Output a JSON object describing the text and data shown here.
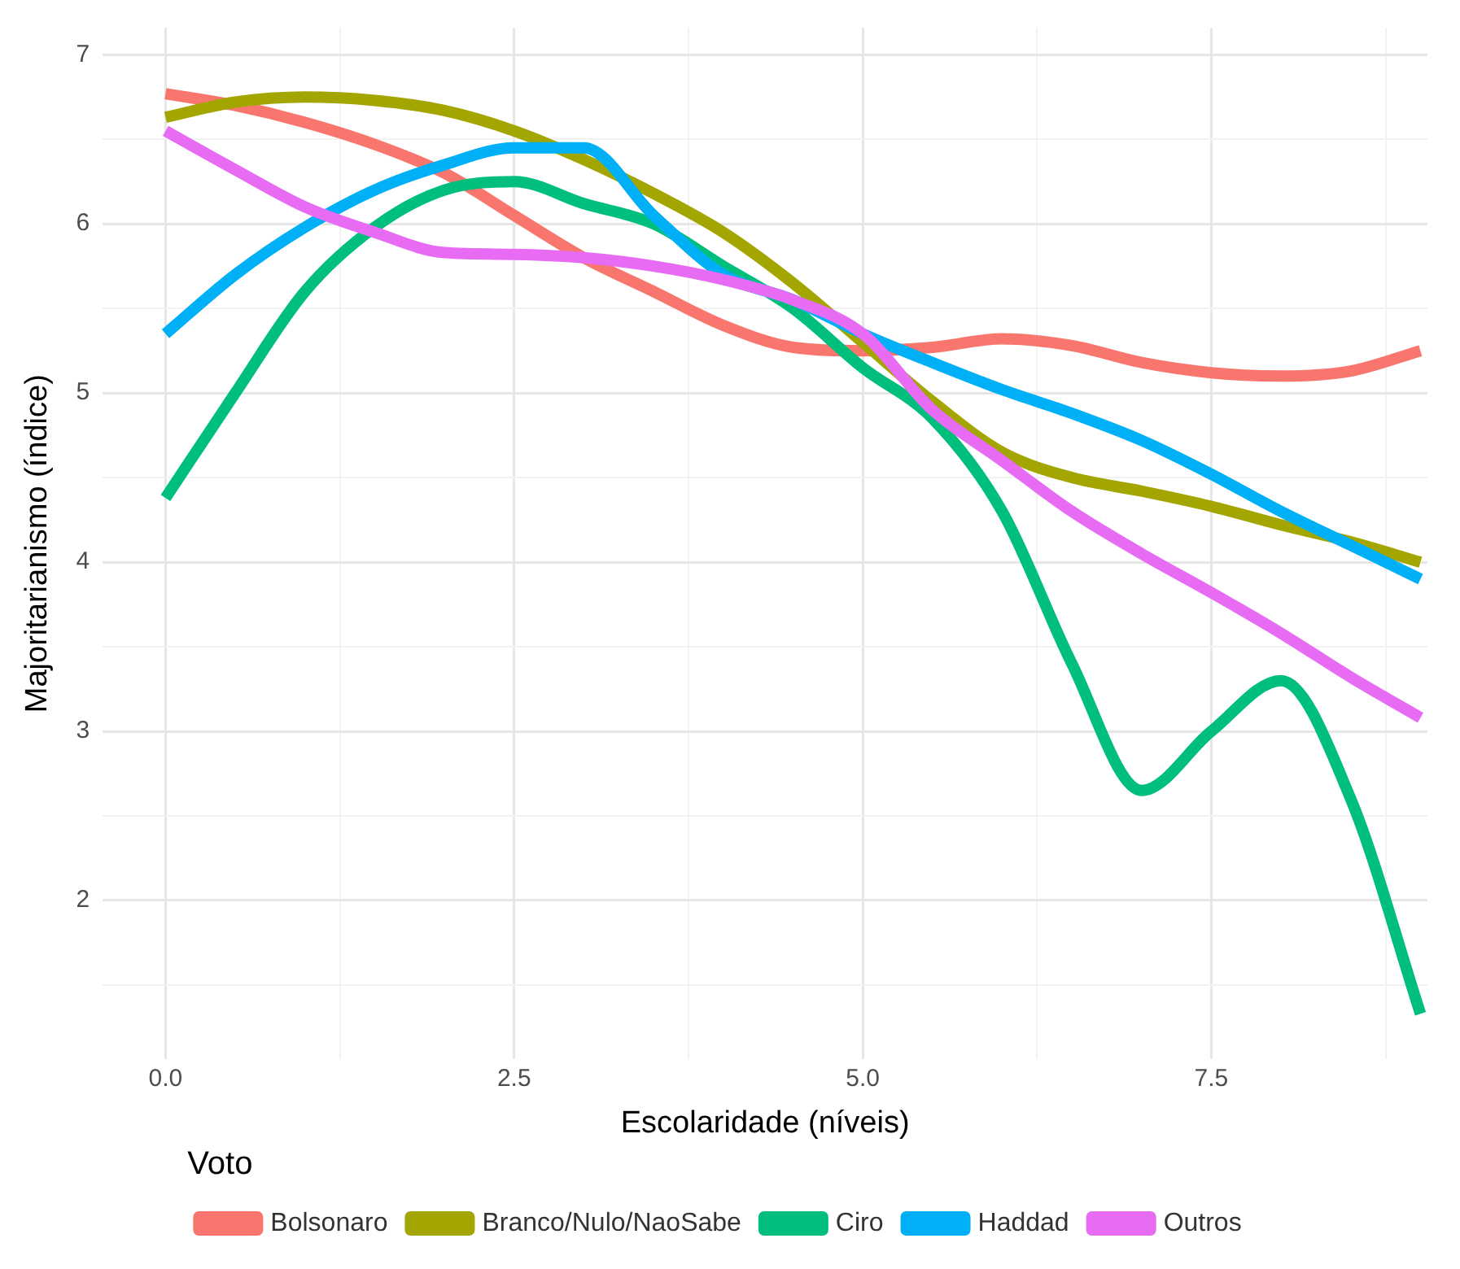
{
  "chart_data": {
    "type": "line",
    "xlabel": "Escolaridade (níveis)",
    "ylabel": "Majoritarianismo (índice)",
    "legend_title": "Voto",
    "legend": "bottom",
    "grid": true,
    "marker": "none",
    "line_style": "solid",
    "x": [
      0,
      0.5,
      1,
      1.5,
      2,
      2.5,
      3,
      3.5,
      4,
      4.5,
      5,
      5.5,
      6,
      6.5,
      7,
      7.5,
      8,
      8.5,
      9
    ],
    "xlim": [
      -0.45,
      9.05
    ],
    "xticks": [
      {
        "value": 0,
        "label": "0.0"
      },
      {
        "value": 1.25,
        "label": null
      },
      {
        "value": 2.5,
        "label": "2.5"
      },
      {
        "value": 3.75,
        "label": null
      },
      {
        "value": 5,
        "label": "5.0"
      },
      {
        "value": 6.25,
        "label": null
      },
      {
        "value": 7.5,
        "label": "7.5"
      },
      {
        "value": 8.75,
        "label": null
      }
    ],
    "ylim": [
      1.06,
      7.16
    ],
    "yticks": [
      {
        "value": 1.5,
        "label": null
      },
      2,
      {
        "value": 2.5,
        "label": null
      },
      3,
      {
        "value": 3.5,
        "label": null
      },
      4,
      {
        "value": 4.5,
        "label": null
      },
      5,
      {
        "value": 5.5,
        "label": null
      },
      6,
      {
        "value": 6.5,
        "label": null
      },
      7
    ],
    "series": [
      {
        "name": "Bolsonaro",
        "color": "#f8766d",
        "values": [
          6.77,
          6.7,
          6.6,
          6.47,
          6.3,
          6.05,
          5.8,
          5.6,
          5.4,
          5.27,
          5.25,
          5.27,
          5.32,
          5.28,
          5.18,
          5.12,
          5.1,
          5.13,
          5.25
        ]
      },
      {
        "name": "Branco/Nulo/NaoSabe",
        "color": "#a3a500",
        "values": [
          6.63,
          6.72,
          6.75,
          6.73,
          6.67,
          6.55,
          6.38,
          6.18,
          5.95,
          5.65,
          5.3,
          4.95,
          4.65,
          4.5,
          4.42,
          4.33,
          4.22,
          4.12,
          4.0
        ]
      },
      {
        "name": "Ciro",
        "color": "#00bf7d",
        "values": [
          4.38,
          5.0,
          5.6,
          5.98,
          6.2,
          6.25,
          6.12,
          6.0,
          5.75,
          5.5,
          5.15,
          4.85,
          4.3,
          3.4,
          2.65,
          3.0,
          3.3,
          2.6,
          1.33
        ]
      },
      {
        "name": "Haddad",
        "color": "#00b0f6",
        "values": [
          5.35,
          5.7,
          5.98,
          6.2,
          6.35,
          6.45,
          6.45,
          6.05,
          5.7,
          5.55,
          5.35,
          5.18,
          5.02,
          4.88,
          4.72,
          4.52,
          4.3,
          4.1,
          3.9
        ]
      },
      {
        "name": "Outros",
        "color": "#e76bf3",
        "values": [
          6.55,
          6.32,
          6.1,
          5.95,
          5.83,
          5.82,
          5.8,
          5.75,
          5.67,
          5.55,
          5.35,
          4.9,
          4.6,
          4.3,
          4.05,
          3.82,
          3.58,
          3.32,
          3.08
        ]
      }
    ]
  }
}
